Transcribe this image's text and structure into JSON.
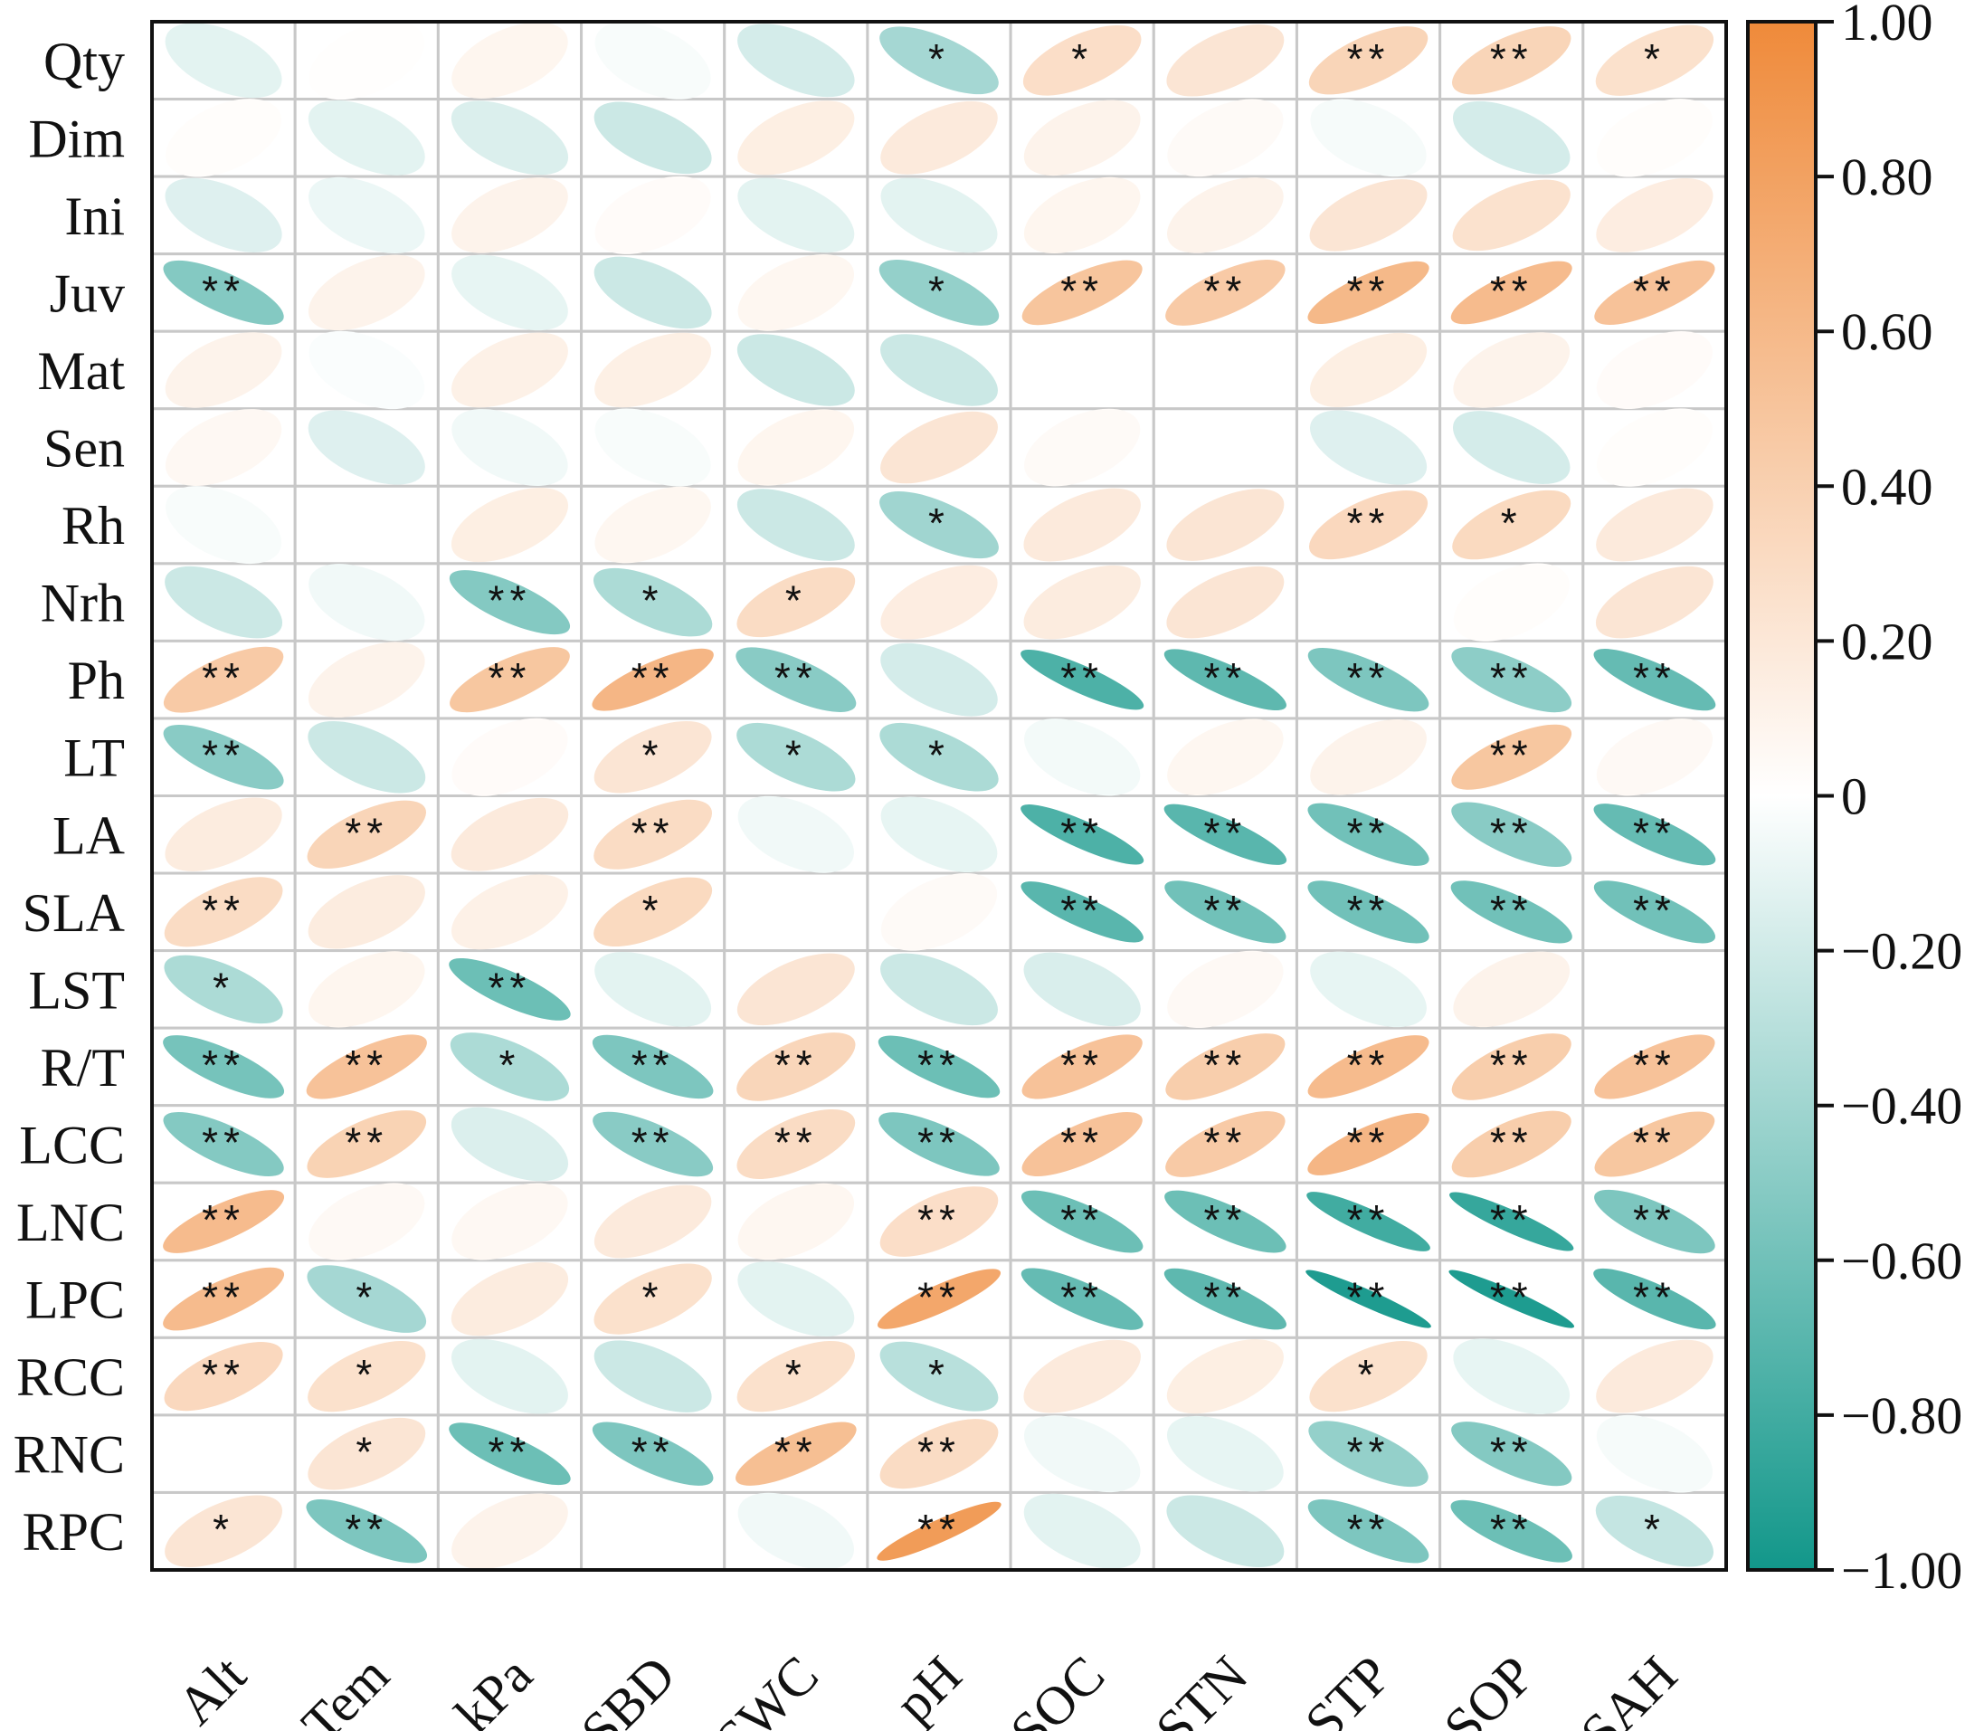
{
  "chart_data": {
    "type": "heatmap",
    "style": "correlation ellipse matrix with significance stars",
    "rows": [
      "Qty",
      "Dim",
      "Ini",
      "Juv",
      "Mat",
      "Sen",
      "Rh",
      "Nrh",
      "Ph",
      "LT",
      "LA",
      "SLA",
      "LST",
      "R/T",
      "LCC",
      "LNC",
      "LPC",
      "RCC",
      "RNC",
      "RPC"
    ],
    "columns": [
      "Alt",
      "Tem",
      "kPa",
      "SBD",
      "SWC",
      "pH",
      "SOC",
      "STN",
      "STP",
      "SOP",
      "SAH"
    ],
    "values": [
      [
        -0.12,
        0.01,
        0.08,
        -0.03,
        -0.18,
        -0.38,
        0.28,
        0.22,
        0.36,
        0.36,
        0.26
      ],
      [
        0.02,
        -0.12,
        -0.15,
        -0.22,
        0.14,
        0.18,
        0.1,
        0.04,
        -0.04,
        -0.18,
        0.02
      ],
      [
        -0.14,
        -0.08,
        0.1,
        0.03,
        -0.12,
        -0.12,
        0.08,
        0.1,
        0.22,
        0.25,
        0.15
      ],
      [
        -0.52,
        0.1,
        -0.1,
        -0.22,
        0.07,
        -0.45,
        0.5,
        0.45,
        0.6,
        0.58,
        0.52
      ],
      [
        0.1,
        -0.02,
        0.12,
        0.13,
        -0.22,
        -0.22,
        0.0,
        0.0,
        0.14,
        0.1,
        0.03
      ],
      [
        0.06,
        -0.14,
        -0.06,
        -0.03,
        0.08,
        0.22,
        0.04,
        0.0,
        -0.14,
        -0.18,
        0.02
      ],
      [
        -0.03,
        0.0,
        0.14,
        0.07,
        -0.22,
        -0.4,
        0.18,
        0.22,
        0.33,
        0.32,
        0.18
      ],
      [
        -0.22,
        -0.06,
        -0.52,
        -0.35,
        0.3,
        0.15,
        0.16,
        0.22,
        0.0,
        0.02,
        0.22
      ],
      [
        0.45,
        0.1,
        0.48,
        0.62,
        -0.5,
        -0.18,
        -0.75,
        -0.68,
        -0.55,
        -0.48,
        -0.65
      ],
      [
        -0.5,
        -0.22,
        0.03,
        0.22,
        -0.35,
        -0.35,
        -0.05,
        0.07,
        0.1,
        0.48,
        0.05
      ],
      [
        0.16,
        0.36,
        0.18,
        0.3,
        -0.06,
        -0.1,
        -0.75,
        -0.7,
        -0.6,
        -0.5,
        -0.65
      ],
      [
        0.3,
        0.16,
        0.12,
        0.32,
        0.0,
        0.04,
        -0.7,
        -0.6,
        -0.6,
        -0.6,
        -0.6
      ],
      [
        -0.35,
        0.08,
        -0.62,
        -0.12,
        0.22,
        -0.22,
        -0.16,
        0.05,
        -0.1,
        0.1,
        0.0
      ],
      [
        -0.58,
        0.52,
        -0.35,
        -0.55,
        0.35,
        -0.62,
        0.52,
        0.42,
        0.58,
        0.42,
        0.52
      ],
      [
        -0.52,
        0.38,
        -0.15,
        -0.5,
        0.3,
        -0.55,
        0.52,
        0.45,
        0.62,
        0.42,
        0.48
      ],
      [
        0.58,
        0.05,
        0.06,
        0.18,
        0.07,
        0.28,
        -0.62,
        -0.62,
        -0.8,
        -0.85,
        -0.55
      ],
      [
        0.58,
        -0.38,
        0.16,
        0.26,
        -0.12,
        0.75,
        -0.65,
        -0.68,
        -0.95,
        -0.95,
        -0.7
      ],
      [
        0.33,
        0.26,
        -0.12,
        -0.22,
        0.26,
        -0.3,
        0.18,
        0.14,
        0.26,
        -0.1,
        0.18
      ],
      [
        0.0,
        0.22,
        -0.62,
        -0.55,
        0.55,
        0.3,
        -0.06,
        -0.1,
        -0.45,
        -0.52,
        -0.04
      ],
      [
        0.22,
        -0.55,
        0.1,
        0.0,
        -0.06,
        0.85,
        -0.12,
        -0.22,
        -0.55,
        -0.62,
        -0.25
      ]
    ],
    "significance": [
      [
        "",
        "",
        "",
        "",
        "",
        "*",
        "*",
        "",
        "**",
        "**",
        "*"
      ],
      [
        "",
        "",
        "",
        "",
        "",
        "",
        "",
        "",
        "",
        "",
        ""
      ],
      [
        "",
        "",
        "",
        "",
        "",
        "",
        "",
        "",
        "",
        "",
        ""
      ],
      [
        "**",
        "",
        "",
        "",
        "",
        "*",
        "**",
        "**",
        "**",
        "**",
        "**"
      ],
      [
        "",
        "",
        "",
        "",
        "",
        "",
        "",
        "",
        "",
        "",
        ""
      ],
      [
        "",
        "",
        "",
        "",
        "",
        "",
        "",
        "",
        "",
        "",
        ""
      ],
      [
        "",
        "",
        "",
        "",
        "",
        "*",
        "",
        "",
        "**",
        "*",
        ""
      ],
      [
        "",
        "",
        "**",
        "*",
        "*",
        "",
        "",
        "",
        "",
        "",
        ""
      ],
      [
        "**",
        "",
        "**",
        "**",
        "**",
        "",
        "**",
        "**",
        "**",
        "**",
        "**"
      ],
      [
        "**",
        "",
        "",
        "*",
        "*",
        "*",
        "",
        "",
        "",
        "**",
        ""
      ],
      [
        "",
        "**",
        "",
        "**",
        "",
        "",
        "**",
        "**",
        "**",
        "**",
        "**"
      ],
      [
        "**",
        "",
        "",
        "*",
        "",
        "",
        "**",
        "**",
        "**",
        "**",
        "**"
      ],
      [
        "*",
        "",
        "**",
        "",
        "",
        "",
        "",
        "",
        "",
        "",
        ""
      ],
      [
        "**",
        "**",
        "*",
        "**",
        "**",
        "**",
        "**",
        "**",
        "**",
        "**",
        "**"
      ],
      [
        "**",
        "**",
        "",
        "**",
        "**",
        "**",
        "**",
        "**",
        "**",
        "**",
        "**"
      ],
      [
        "**",
        "",
        "",
        "",
        "",
        "**",
        "**",
        "**",
        "**",
        "**",
        "**"
      ],
      [
        "**",
        "*",
        "",
        "*",
        "",
        "**",
        "**",
        "**",
        "**",
        "**",
        "**"
      ],
      [
        "**",
        "*",
        "",
        "",
        "*",
        "*",
        "",
        "",
        "*",
        "",
        ""
      ],
      [
        "",
        "*",
        "**",
        "**",
        "**",
        "**",
        "",
        "",
        "**",
        "**",
        ""
      ],
      [
        "*",
        "**",
        "",
        "",
        "",
        "**",
        "",
        "",
        "**",
        "**",
        "*"
      ]
    ],
    "colorbar": {
      "min": -1.0,
      "max": 1.0,
      "ticks": [
        "1.00",
        "0.80",
        "0.60",
        "0.40",
        "0.20",
        "0",
        "−0.20",
        "−0.40",
        "−0.60",
        "−0.80",
        "−1.00"
      ],
      "tick_values": [
        1.0,
        0.8,
        0.6,
        0.4,
        0.2,
        0.0,
        -0.2,
        -0.4,
        -0.6,
        -0.8,
        -1.0
      ],
      "colors": {
        "positive": "#ef8a3a",
        "zero": "#ffffff",
        "negative": "#12978a"
      }
    },
    "grid": true,
    "legend": "right",
    "title": "",
    "xlabel": "",
    "ylabel": ""
  }
}
